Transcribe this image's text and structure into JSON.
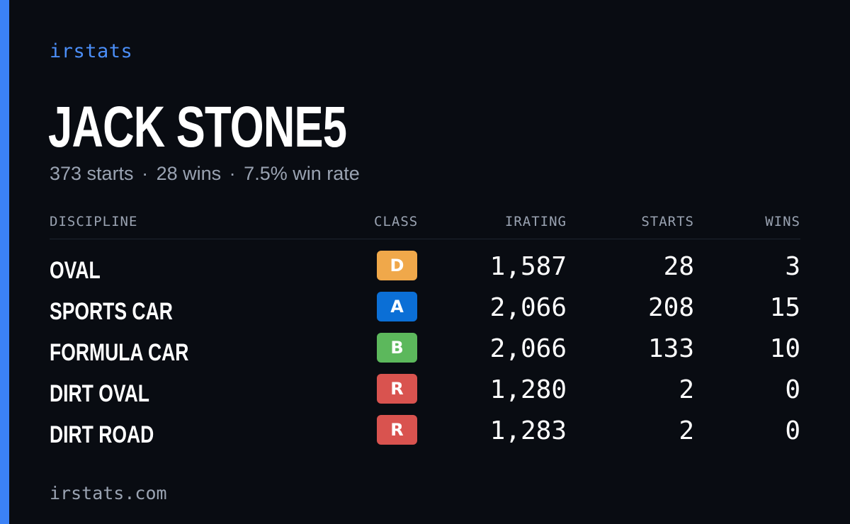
{
  "brand": "irstats",
  "driver": {
    "name": "JACK STONE5",
    "starts": "373 starts",
    "wins": "28 wins",
    "win_rate": "7.5% win rate",
    "separator": "·"
  },
  "table": {
    "headers": {
      "discipline": "DISCIPLINE",
      "class": "CLASS",
      "irating": "IRATING",
      "starts": "STARTS",
      "wins": "WINS"
    },
    "rows": [
      {
        "discipline": "OVAL",
        "class": "D",
        "class_color": "#f0a84a",
        "irating": "1,587",
        "starts": "28",
        "wins": "3"
      },
      {
        "discipline": "SPORTS CAR",
        "class": "A",
        "class_color": "#0b6fd6",
        "irating": "2,066",
        "starts": "208",
        "wins": "15"
      },
      {
        "discipline": "FORMULA CAR",
        "class": "B",
        "class_color": "#5cb85c",
        "irating": "2,066",
        "starts": "133",
        "wins": "10"
      },
      {
        "discipline": "DIRT OVAL",
        "class": "R",
        "class_color": "#d9534f",
        "irating": "1,280",
        "starts": "2",
        "wins": "0"
      },
      {
        "discipline": "DIRT ROAD",
        "class": "R",
        "class_color": "#d9534f",
        "irating": "1,283",
        "starts": "2",
        "wins": "0"
      }
    ]
  },
  "footer": "irstats.com",
  "colors": {
    "background": "#090c12",
    "accent": "#3b82f6",
    "muted_text": "#9aa3b2"
  }
}
